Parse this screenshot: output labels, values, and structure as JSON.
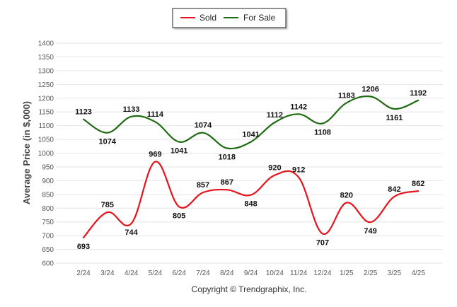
{
  "chart_data": {
    "type": "line",
    "categories": [
      "2/24",
      "3/24",
      "4/24",
      "5/24",
      "6/24",
      "7/24",
      "8/24",
      "9/24",
      "10/24",
      "11/24",
      "12/24",
      "1/25",
      "2/25",
      "3/25",
      "4/25"
    ],
    "series": [
      {
        "name": "Sold",
        "color": "#e8121c",
        "values": [
          693,
          785,
          744,
          969,
          805,
          857,
          867,
          848,
          920,
          912,
          707,
          820,
          749,
          842,
          862
        ]
      },
      {
        "name": "For Sale",
        "color": "#1e6b12",
        "values": [
          1123,
          1074,
          1133,
          1114,
          1041,
          1074,
          1018,
          1041,
          1112,
          1142,
          1108,
          1183,
          1206,
          1161,
          1192
        ]
      }
    ],
    "ylabel": "Average Price (in $,000)",
    "ylim": [
      600,
      1400
    ],
    "yticks": [
      600,
      650,
      700,
      750,
      800,
      850,
      900,
      950,
      1000,
      1050,
      1100,
      1150,
      1200,
      1250,
      1300,
      1350,
      1400
    ],
    "grid": true,
    "legend": "top-center"
  },
  "footer": "Copyright © Trendgraphix, Inc."
}
